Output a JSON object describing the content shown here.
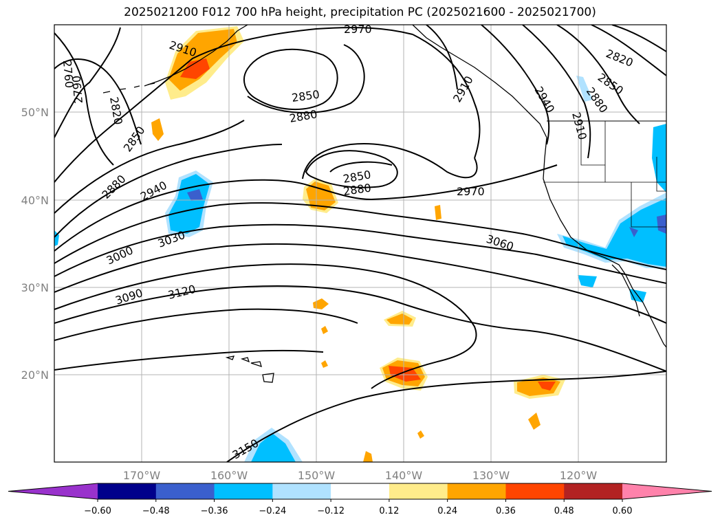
{
  "title": "2025021200 F012 700 hPa height, precipitation PC (2025021600 - 2025021700)",
  "lat_ticks": [
    "50°N",
    "40°N",
    "30°N",
    "20°N"
  ],
  "lon_ticks": [
    "170°W",
    "160°W",
    "150°W",
    "140°W",
    "130°W",
    "120°W"
  ],
  "contour_labels": [
    "2970",
    "2910",
    "2760",
    "2790",
    "2820",
    "2850",
    "2880",
    "2850",
    "2880",
    "2850",
    "2880",
    "2940",
    "2970",
    "3000",
    "3030",
    "3060",
    "3090",
    "3120",
    "3150",
    "2820",
    "2850",
    "2880",
    "2910",
    "2940",
    "2910"
  ],
  "colorbar": {
    "ticks": [
      "−0.60",
      "−0.48",
      "−0.36",
      "−0.24",
      "−0.12",
      "0.12",
      "0.24",
      "0.36",
      "0.48",
      "0.60"
    ],
    "colors": [
      "#9932cc",
      "#00008b",
      "#3a5fcd",
      "#00bfff",
      "#b0e2ff",
      "#ffffff",
      "#ffec8b",
      "#ffa500",
      "#ff4500",
      "#b22222",
      "#ff82ab"
    ]
  }
}
